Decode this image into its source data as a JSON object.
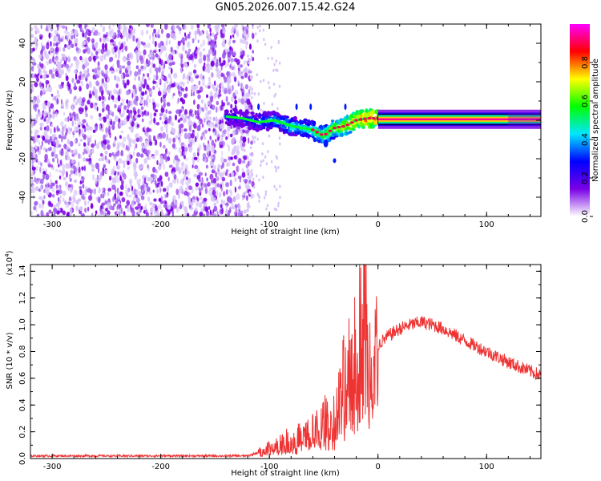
{
  "figure": {
    "title": "GN05.2026.007.15.42.G24"
  },
  "chart_data": [
    {
      "type": "heatmap",
      "panel": "spectrogram",
      "title": "GN05.2026.007.15.42.G24",
      "xlabel": "Height of straight line (km)",
      "ylabel": "Frequency (Hz)",
      "xlim": [
        -320,
        150
      ],
      "ylim": [
        -50,
        50
      ],
      "xticks": [
        -300,
        -200,
        -100,
        0,
        100
      ],
      "yticks": [
        -40,
        -20,
        0,
        20,
        40
      ],
      "colorbar": {
        "label": "Normalized spectral amplitude",
        "range": [
          0,
          1
        ],
        "ticks": [
          0.0,
          0.2,
          0.4,
          0.6,
          0.8
        ],
        "colors": [
          "#ffffff",
          "#7a00e6",
          "#0000ff",
          "#00e6ff",
          "#00ff00",
          "#ffff00",
          "#ff0000",
          "#ff00ff"
        ]
      },
      "noise_region_km": [
        -320,
        -115
      ],
      "signal_track": {
        "x": [
          -140,
          -125,
          -110,
          -95,
          -80,
          -70,
          -60,
          -50,
          -45,
          -40,
          -30,
          -20,
          -10,
          0,
          50,
          100,
          150
        ],
        "y": [
          2,
          1,
          -1,
          0,
          -3,
          -4,
          -5,
          -8,
          -6,
          -4,
          -3,
          0,
          1,
          1,
          0.5,
          0.5,
          0.5
        ],
        "amplitude": [
          0.35,
          0.4,
          0.45,
          0.5,
          0.55,
          0.55,
          0.6,
          0.65,
          0.7,
          0.7,
          0.8,
          0.85,
          0.9,
          0.9,
          0.95,
          0.95,
          0.95
        ]
      }
    },
    {
      "type": "line",
      "panel": "snr",
      "xlabel": "Height of straight line (km)",
      "ylabel": "SNR (10 * v/v)",
      "yscale_label": "(x10^4)",
      "xlim": [
        -320,
        150
      ],
      "ylim": [
        0,
        1.45
      ],
      "xticks": [
        -300,
        -200,
        -100,
        0,
        100
      ],
      "yticks": [
        0.0,
        0.2,
        0.4,
        0.6,
        0.8,
        1.0,
        1.2,
        1.4
      ],
      "series": [
        {
          "name": "SNR",
          "color": "#ee3333",
          "x": [
            -320,
            -250,
            -200,
            -150,
            -120,
            -105,
            -90,
            -75,
            -60,
            -50,
            -40,
            -35,
            -30,
            -25,
            -20,
            -15,
            -12,
            -10,
            0,
            10,
            20,
            30,
            40,
            50,
            60,
            80,
            100,
            120,
            150
          ],
          "y": [
            0.02,
            0.02,
            0.02,
            0.02,
            0.02,
            0.06,
            0.12,
            0.15,
            0.2,
            0.28,
            0.3,
            0.45,
            0.6,
            0.75,
            0.9,
            1.1,
            1.45,
            0.7,
            0.85,
            0.92,
            0.97,
            1.0,
            1.02,
            1.0,
            0.97,
            0.88,
            0.8,
            0.72,
            0.62
          ]
        }
      ]
    }
  ]
}
